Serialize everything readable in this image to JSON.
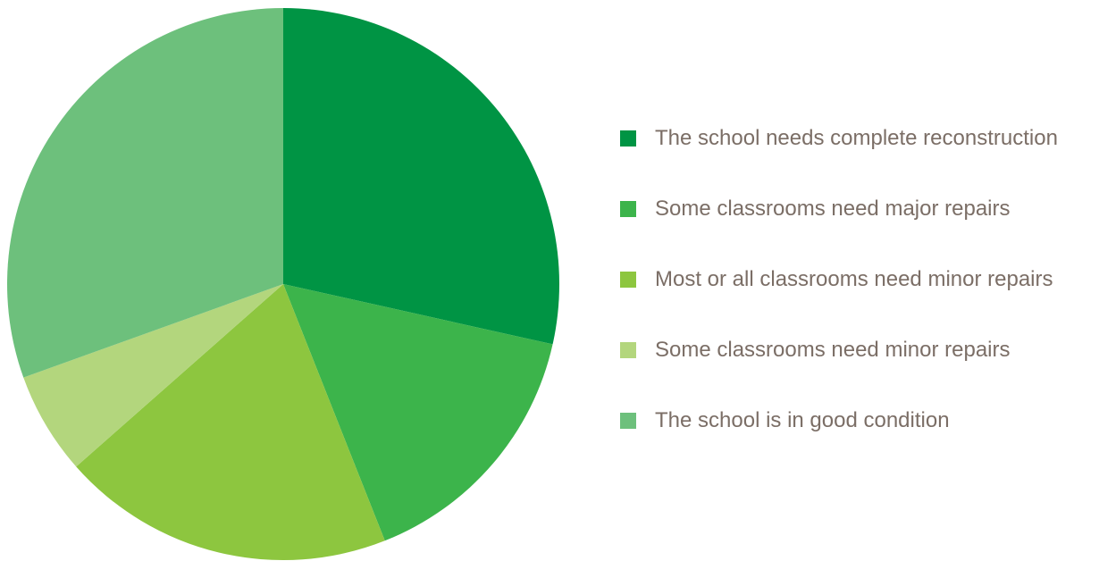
{
  "chart_data": {
    "type": "pie",
    "title": "",
    "legend_position": "right",
    "start_angle_deg": 0,
    "direction": "clockwise",
    "series": [
      {
        "values": [
          28.5,
          15.5,
          19.5,
          6.0,
          30.5
        ]
      }
    ],
    "categories": [
      "The school needs complete reconstruction",
      "Some classrooms need major repairs",
      "Most or all classrooms need minor repairs",
      "Some classrooms need minor repairs",
      "The school is in good condition"
    ],
    "colors": [
      "#009444",
      "#3cb44b",
      "#8dc63f",
      "#b3d67d",
      "#6dc07c"
    ]
  }
}
